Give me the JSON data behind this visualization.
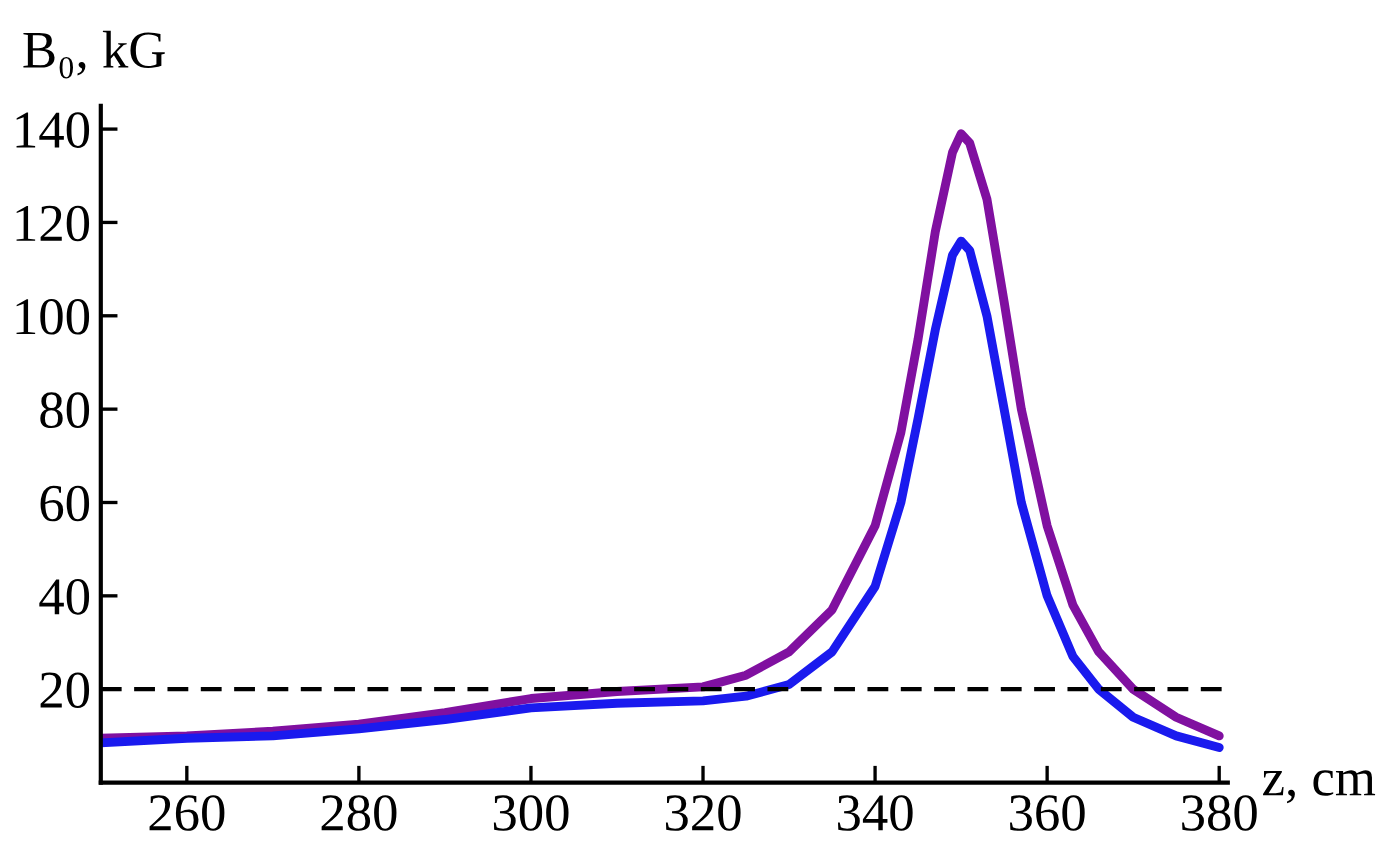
{
  "chart_data": {
    "type": "line",
    "xlabel": "z, cm",
    "ylabel": "B₀, kG",
    "xlim": [
      250,
      381
    ],
    "ylim": [
      0,
      145
    ],
    "xticks": [
      260,
      280,
      300,
      320,
      340,
      360,
      380
    ],
    "yticks": [
      20,
      40,
      60,
      80,
      100,
      120,
      140
    ],
    "grid": false,
    "legend": false,
    "marker": "none",
    "line_style": "solid",
    "ref_lines": [
      {
        "axis": "y",
        "value": 20,
        "color": "#000000",
        "line_style": "dashed"
      }
    ],
    "series": [
      {
        "color": "#8010a0",
        "x": [
          250,
          260,
          270,
          280,
          290,
          300,
          310,
          320,
          325,
          330,
          335,
          340,
          343,
          345,
          347,
          349,
          350,
          351,
          353,
          355,
          357,
          360,
          363,
          366,
          370,
          375,
          380
        ],
        "values": [
          9.5,
          10,
          11,
          12.5,
          15,
          18,
          19.5,
          20.5,
          23,
          28,
          37,
          55,
          75,
          95,
          118,
          135,
          139,
          137,
          125,
          103,
          80,
          55,
          38,
          28,
          20,
          14,
          10
        ]
      },
      {
        "color": "#1a1aee",
        "x": [
          250,
          260,
          270,
          280,
          290,
          300,
          310,
          320,
          325,
          330,
          335,
          340,
          343,
          345,
          347,
          349,
          350,
          351,
          353,
          355,
          357,
          360,
          363,
          366,
          370,
          375,
          380
        ],
        "values": [
          8.5,
          9.5,
          10,
          11.5,
          13.5,
          16,
          17,
          17.5,
          18.5,
          21,
          28,
          42,
          60,
          78,
          97,
          113,
          116,
          114,
          100,
          80,
          60,
          40,
          27,
          20,
          14,
          10,
          7.5
        ]
      }
    ]
  }
}
